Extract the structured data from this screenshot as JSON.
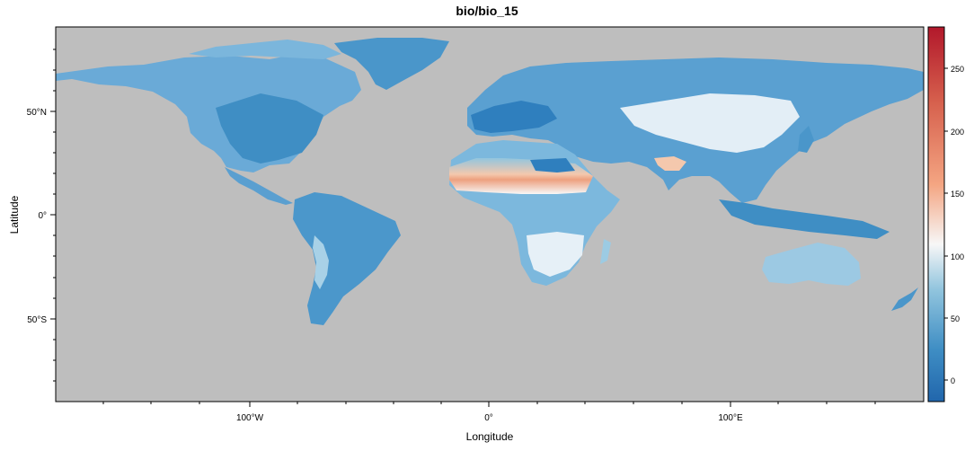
{
  "map": {
    "title": "bio/bio_15",
    "ylabel": "Latitude",
    "xlabel": "Longitude",
    "x_ticks": [
      "100°W",
      "0°",
      "100°E"
    ],
    "y_ticks": [
      "50°N",
      "0°",
      "50°S"
    ],
    "colorbar_ticks": [
      "250",
      "200",
      "150",
      "100",
      "50",
      "0"
    ],
    "background_color": "#bebebe",
    "colorscale": [
      "#2166ac",
      "#4393c3",
      "#92c5de",
      "#f7f7f7",
      "#f4a582",
      "#d6604d",
      "#b2182b"
    ]
  }
}
